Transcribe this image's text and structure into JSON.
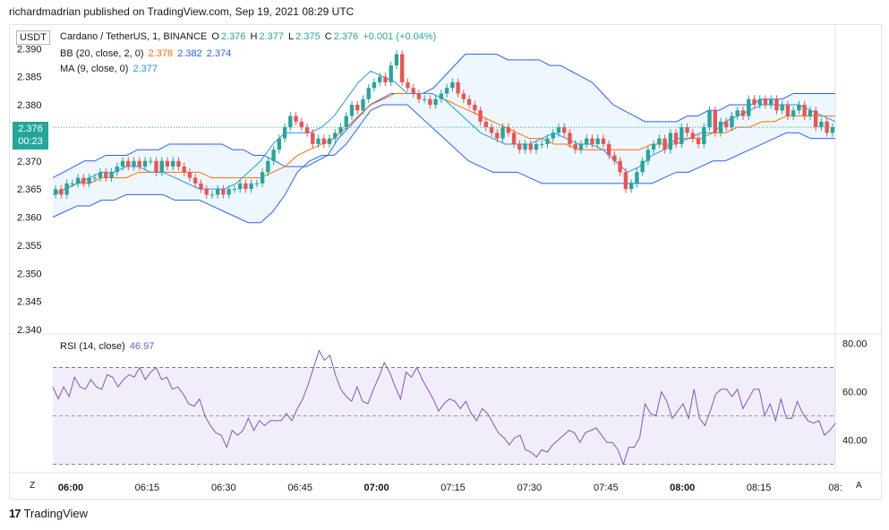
{
  "header": {
    "published_text": "richardmadrian published on TradingView.com, Sep 19, 2021 08:29 UTC"
  },
  "symbol_box": {
    "label": "USDT"
  },
  "last_price_tag": {
    "price": "2.376",
    "countdown": "00:23"
  },
  "legend": {
    "title": "Cardano / TetherUS, 1, BINANCE",
    "o_label": "O",
    "o_value": "2.376",
    "h_label": "H",
    "h_value": "2.377",
    "l_label": "L",
    "l_value": "2.375",
    "c_label": "C",
    "c_value": "2.376",
    "change": "+0.001 (+0.04%)",
    "bb_label": "BB (20, close, 2, 0)",
    "bb_basis": "2.378",
    "bb_upper": "2.382",
    "bb_lower": "2.374",
    "ma_label": "MA (9, close, 0)",
    "ma_value": "2.377",
    "rsi_label": "RSI (14, close)",
    "rsi_value": "46.97"
  },
  "bottom": {
    "z_button": "Z",
    "a_button": "A"
  },
  "brand": {
    "name": "TradingView",
    "mark": "17"
  },
  "colors": {
    "up": "#26a69a",
    "down": "#ef5350",
    "bb_band": "#2962ff",
    "bb_basis": "#ff6d00",
    "ma": "#2196f3",
    "rsi": "#7e57c2",
    "rsi_fill": "#7e57c2"
  },
  "chart_data": [
    {
      "type": "candlestick",
      "title": "Cardano / TetherUS, 1, BINANCE",
      "y_ticks": [
        "2.340",
        "2.345",
        "2.350",
        "2.355",
        "2.360",
        "2.365",
        "2.370",
        "2.375",
        "2.380",
        "2.385",
        "2.390"
      ],
      "ylim": [
        2.34,
        2.391
      ],
      "x_ticks": [
        "06:00",
        "06:15",
        "06:30",
        "06:45",
        "07:00",
        "07:15",
        "07:30",
        "07:45",
        "08:00",
        "08:15",
        "08:"
      ],
      "x_ticks_bold": [
        true,
        false,
        false,
        false,
        true,
        false,
        false,
        false,
        true,
        false,
        false
      ],
      "close": [
        2.365,
        2.364,
        2.366,
        2.366,
        2.367,
        2.366,
        2.367,
        2.367,
        2.368,
        2.367,
        2.368,
        2.369,
        2.37,
        2.369,
        2.37,
        2.369,
        2.37,
        2.37,
        2.368,
        2.37,
        2.369,
        2.37,
        2.369,
        2.368,
        2.367,
        2.366,
        2.365,
        2.364,
        2.364,
        2.365,
        2.364,
        2.365,
        2.365,
        2.366,
        2.365,
        2.366,
        2.366,
        2.368,
        2.37,
        2.372,
        2.374,
        2.376,
        2.378,
        2.377,
        2.376,
        2.375,
        2.373,
        2.374,
        2.373,
        2.374,
        2.375,
        2.376,
        2.378,
        2.38,
        2.379,
        2.381,
        2.383,
        2.384,
        2.385,
        2.384,
        2.387,
        2.389,
        2.384,
        2.383,
        2.382,
        2.381,
        2.381,
        2.38,
        2.381,
        2.382,
        2.383,
        2.384,
        2.382,
        2.381,
        2.38,
        2.379,
        2.377,
        2.376,
        2.375,
        2.374,
        2.376,
        2.375,
        2.373,
        2.372,
        2.373,
        2.372,
        2.373,
        2.373,
        2.374,
        2.375,
        2.376,
        2.375,
        2.373,
        2.372,
        2.373,
        2.374,
        2.373,
        2.374,
        2.373,
        2.371,
        2.37,
        2.368,
        2.365,
        2.366,
        2.368,
        2.37,
        2.372,
        2.373,
        2.374,
        2.372,
        2.375,
        2.373,
        2.376,
        2.375,
        2.374,
        2.373,
        2.376,
        2.379,
        2.375,
        2.377,
        2.376,
        2.378,
        2.379,
        2.378,
        2.381,
        2.38,
        2.381,
        2.38,
        2.381,
        2.379,
        2.38,
        2.378,
        2.379,
        2.38,
        2.378,
        2.379,
        2.376,
        2.377,
        2.375,
        2.376
      ],
      "bb_upper": [
        2.367,
        2.368,
        2.369,
        2.37,
        2.37,
        2.371,
        2.371,
        2.371,
        2.372,
        2.372,
        2.372,
        2.373,
        2.373,
        2.373,
        2.373,
        2.373,
        2.373,
        2.372,
        2.372,
        2.371,
        2.371,
        2.37,
        2.369,
        2.369,
        2.369,
        2.37,
        2.371,
        2.374,
        2.376,
        2.378,
        2.38,
        2.381,
        2.382,
        2.382,
        2.382,
        2.382,
        2.383,
        2.385,
        2.387,
        2.389,
        2.389,
        2.389,
        2.389,
        2.388,
        2.388,
        2.388,
        2.388,
        2.387,
        2.387,
        2.386,
        2.385,
        2.384,
        2.382,
        2.38,
        2.379,
        2.378,
        2.377,
        2.377,
        2.377,
        2.377,
        2.378,
        2.378,
        2.379,
        2.379,
        2.38,
        2.38,
        2.38,
        2.381,
        2.381,
        2.381,
        2.382,
        2.382,
        2.382,
        2.382,
        2.382
      ],
      "bb_basis": [
        2.364,
        2.365,
        2.366,
        2.366,
        2.367,
        2.367,
        2.367,
        2.368,
        2.368,
        2.368,
        2.368,
        2.368,
        2.368,
        2.367,
        2.367,
        2.367,
        2.367,
        2.367,
        2.368,
        2.369,
        2.371,
        2.372,
        2.373,
        2.374,
        2.376,
        2.378,
        2.38,
        2.381,
        2.382,
        2.382,
        2.382,
        2.382,
        2.381,
        2.38,
        2.379,
        2.378,
        2.377,
        2.376,
        2.375,
        2.374,
        2.374,
        2.373,
        2.373,
        2.372,
        2.372,
        2.372,
        2.372,
        2.372,
        2.372,
        2.373,
        2.373,
        2.373,
        2.374,
        2.374,
        2.375,
        2.375,
        2.376,
        2.376,
        2.377,
        2.377,
        2.378,
        2.378,
        2.378,
        2.378,
        2.378
      ],
      "bb_lower": [
        2.36,
        2.361,
        2.362,
        2.362,
        2.363,
        2.363,
        2.364,
        2.364,
        2.364,
        2.364,
        2.363,
        2.363,
        2.363,
        2.362,
        2.361,
        2.36,
        2.359,
        2.359,
        2.361,
        2.364,
        2.368,
        2.37,
        2.371,
        2.371,
        2.373,
        2.376,
        2.379,
        2.38,
        2.38,
        2.38,
        2.378,
        2.376,
        2.374,
        2.372,
        2.37,
        2.369,
        2.368,
        2.368,
        2.368,
        2.367,
        2.366,
        2.366,
        2.366,
        2.366,
        2.366,
        2.366,
        2.366,
        2.366,
        2.366,
        2.366,
        2.367,
        2.368,
        2.368,
        2.369,
        2.37,
        2.37,
        2.371,
        2.372,
        2.373,
        2.374,
        2.375,
        2.375,
        2.374,
        2.374,
        2.374
      ],
      "ma": [
        2.364,
        2.365,
        2.366,
        2.367,
        2.368,
        2.368,
        2.369,
        2.369,
        2.368,
        2.368,
        2.367,
        2.366,
        2.365,
        2.365,
        2.365,
        2.366,
        2.368,
        2.37,
        2.373,
        2.375,
        2.375,
        2.375,
        2.376,
        2.378,
        2.381,
        2.384,
        2.386,
        2.385,
        2.384,
        2.382,
        2.382,
        2.382,
        2.381,
        2.379,
        2.377,
        2.375,
        2.374,
        2.373,
        2.373,
        2.373,
        2.374,
        2.375,
        2.374,
        2.373,
        2.373,
        2.372,
        2.37,
        2.368,
        2.369,
        2.371,
        2.372,
        2.374,
        2.374,
        2.375,
        2.375,
        2.377,
        2.378,
        2.379,
        2.38,
        2.38,
        2.38,
        2.38,
        2.379,
        2.378,
        2.377
      ]
    },
    {
      "type": "line",
      "title": "RSI (14, close)",
      "y_ticks": [
        "40.00",
        "60.00",
        "80.00"
      ],
      "ylim": [
        28,
        82
      ],
      "band": [
        30,
        70
      ],
      "midline": 50,
      "values": [
        62,
        57,
        62,
        58,
        66,
        62,
        61,
        65,
        62,
        61,
        67,
        66,
        62,
        65,
        67,
        66,
        70,
        65,
        68,
        70,
        65,
        66,
        61,
        62,
        59,
        55,
        54,
        57,
        50,
        46,
        43,
        42,
        37,
        44,
        42,
        44,
        49,
        44,
        48,
        46,
        48,
        48,
        48,
        51,
        48,
        53,
        57,
        63,
        70,
        77,
        73,
        75,
        67,
        61,
        58,
        56,
        62,
        56,
        55,
        61,
        66,
        72,
        68,
        62,
        57,
        68,
        66,
        70,
        65,
        61,
        57,
        52,
        55,
        57,
        56,
        53,
        56,
        51,
        48,
        53,
        51,
        47,
        43,
        41,
        38,
        41,
        42,
        36,
        35,
        33,
        36,
        35,
        38,
        40,
        42,
        44,
        43,
        39,
        43,
        44,
        45,
        42,
        39,
        39,
        36,
        30,
        37,
        37,
        41,
        55,
        51,
        50,
        60,
        56,
        49,
        52,
        55,
        49,
        61,
        49,
        46,
        52,
        59,
        61,
        61,
        58,
        61,
        53,
        57,
        61,
        61,
        50,
        55,
        48,
        57,
        49,
        49,
        56,
        51,
        48,
        47,
        48,
        42,
        44,
        47
      ]
    }
  ]
}
